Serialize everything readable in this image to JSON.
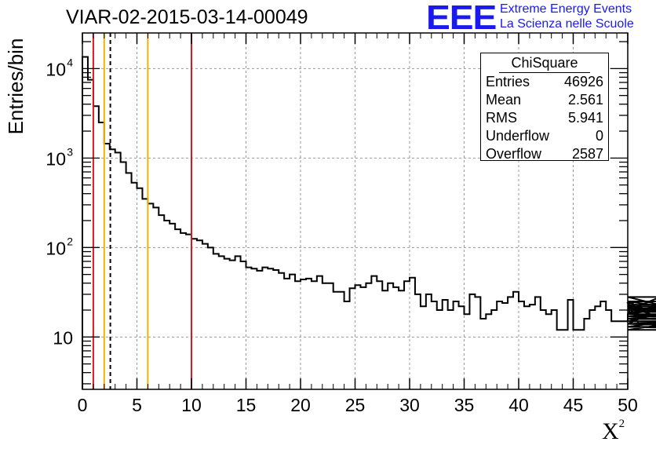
{
  "title": "VIAR-02-2015-03-14-00049",
  "logo": {
    "mark": "EEE",
    "line1": "Extreme Energy Events",
    "line2": "La Scienza nelle Scuole",
    "color": "#1a1aee"
  },
  "stats_box": {
    "title": "ChiSquare",
    "rows": [
      {
        "label": "Entries",
        "value": "46926"
      },
      {
        "label": "Mean",
        "value": "2.561"
      },
      {
        "label": "RMS",
        "value": "5.941"
      },
      {
        "label": "Underflow",
        "value": "0"
      },
      {
        "label": "Overflow",
        "value": "2587"
      }
    ]
  },
  "chart_data": {
    "type": "histogram",
    "title": "VIAR-02-2015-03-14-00049",
    "xlabel": "X",
    "xlabel_superscript": "2",
    "ylabel": "Entries/bin",
    "xlim": [
      0,
      50
    ],
    "ylim": [
      2.6,
      25000
    ],
    "yscale": "log",
    "grid": true,
    "bin_width": 0.5,
    "x_ticks": [
      "0",
      "5",
      "10",
      "15",
      "20",
      "25",
      "30",
      "35",
      "40",
      "45",
      "50"
    ],
    "y_ticks": [
      {
        "value": 10,
        "label": "10",
        "exp": ""
      },
      {
        "value": 100,
        "label": "10",
        "exp": "2"
      },
      {
        "value": 1000,
        "label": "10",
        "exp": "3"
      },
      {
        "value": 10000,
        "label": "10",
        "exp": "4"
      }
    ],
    "values": [
      13500,
      7500,
      3800,
      2500,
      1450,
      1250,
      1150,
      900,
      680,
      530,
      460,
      350,
      310,
      280,
      230,
      200,
      185,
      160,
      145,
      140,
      125,
      120,
      110,
      100,
      85,
      80,
      75,
      72,
      80,
      70,
      60,
      58,
      55,
      60,
      58,
      56,
      52,
      45,
      50,
      42,
      44,
      45,
      42,
      48,
      40,
      40,
      32,
      32,
      25,
      35,
      38,
      36,
      40,
      48,
      42,
      33,
      40,
      36,
      33,
      42,
      46,
      30,
      22,
      30,
      25,
      20,
      26,
      20,
      25,
      22,
      18,
      30,
      28,
      16,
      18,
      20,
      25,
      24,
      28,
      32,
      25,
      22,
      23,
      28,
      20,
      18,
      20,
      12,
      12,
      26,
      12,
      12,
      16,
      20,
      22,
      25,
      20,
      15,
      15,
      15,
      18,
      24,
      14,
      14,
      18,
      20,
      28,
      22,
      15,
      20,
      23,
      16,
      16,
      19,
      21,
      19,
      13,
      18,
      15,
      14,
      14,
      14,
      13,
      12,
      20,
      25,
      15,
      14,
      17,
      17,
      16,
      16,
      15
    ],
    "vertical_lines": [
      {
        "x": 1.0,
        "color": "#e0141e",
        "style": "solid"
      },
      {
        "x": 2.0,
        "color": "#f0b400",
        "style": "solid"
      },
      {
        "x": 2.561,
        "color": "#000000",
        "style": "dashed"
      },
      {
        "x": 6.0,
        "color": "#f0b400",
        "style": "solid"
      },
      {
        "x": 10.0,
        "color": "#e0141e",
        "style": "solid"
      }
    ]
  }
}
